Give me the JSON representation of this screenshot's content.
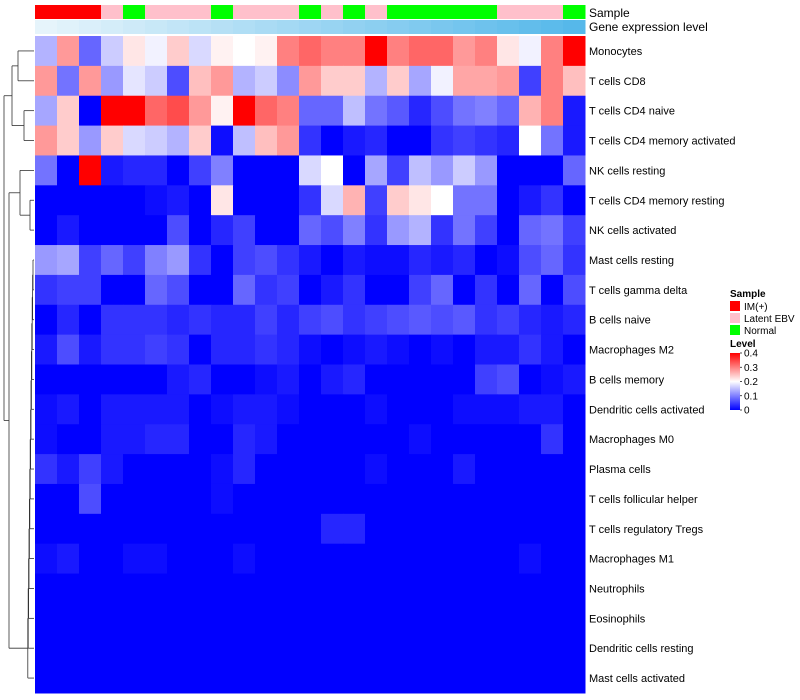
{
  "chart_data": {
    "type": "heatmap",
    "annotation_rows": [
      "Sample",
      "Gene expression level"
    ],
    "sample_groups": [
      "IM(+)",
      "IM(+)",
      "IM(+)",
      "Latent EBV",
      "Normal",
      "Latent EBV",
      "Latent EBV",
      "Latent EBV",
      "Normal",
      "Latent EBV",
      "Latent EBV",
      "Latent EBV",
      "Normal",
      "Latent EBV",
      "Normal",
      "Latent EBV",
      "Normal",
      "Normal",
      "Normal",
      "Normal",
      "Normal",
      "Latent EBV",
      "Latent EBV",
      "Latent EBV",
      "Normal"
    ],
    "expression_levels": [
      1,
      2,
      3,
      4,
      5,
      6,
      7,
      8,
      9,
      10,
      11,
      12,
      13,
      14,
      15,
      16,
      17,
      18,
      19,
      20,
      21,
      22,
      23,
      24,
      25
    ],
    "rows": [
      "Monocytes",
      "T cells CD8",
      "T cells CD4 naive",
      "T cells CD4 memory activated",
      "NK cells resting",
      "T cells CD4 memory resting",
      "NK cells activated",
      "Mast cells resting",
      "T cells gamma delta",
      "B cells naive",
      "Macrophages M2",
      "B cells memory",
      "Dendritic cells activated",
      "Macrophages M0",
      "Plasma cells",
      "T cells follicular helper",
      "T cells regulatory  Tregs",
      "Macrophages M1",
      "Neutrophils",
      "Eosinophils",
      "Dendritic cells resting",
      "Mast cells activated"
    ],
    "values": [
      [
        0.14,
        0.28,
        0.08,
        0.16,
        0.22,
        0.19,
        0.24,
        0.17,
        0.21,
        0.2,
        0.21,
        0.3,
        0.32,
        0.3,
        0.3,
        0.4,
        0.3,
        0.32,
        0.32,
        0.28,
        0.3,
        0.22,
        0.19,
        0.3,
        0.4
      ],
      [
        0.28,
        0.09,
        0.28,
        0.12,
        0.18,
        0.16,
        0.06,
        0.25,
        0.28,
        0.14,
        0.16,
        0.11,
        0.28,
        0.24,
        0.24,
        0.14,
        0.24,
        0.13,
        0.19,
        0.27,
        0.27,
        0.28,
        0.05,
        0.3,
        0.25
      ],
      [
        0.13,
        0.24,
        0.0,
        0.4,
        0.4,
        0.32,
        0.34,
        0.28,
        0.21,
        0.4,
        0.32,
        0.3,
        0.08,
        0.08,
        0.15,
        0.09,
        0.07,
        0.03,
        0.06,
        0.09,
        0.1,
        0.08,
        0.26,
        0.3,
        0.02
      ],
      [
        0.28,
        0.24,
        0.12,
        0.24,
        0.17,
        0.16,
        0.14,
        0.24,
        0.01,
        0.15,
        0.25,
        0.28,
        0.04,
        0.0,
        0.02,
        0.03,
        0.0,
        0.0,
        0.04,
        0.05,
        0.04,
        0.03,
        0.2,
        0.09,
        0.02
      ],
      [
        0.09,
        0.0,
        0.4,
        0.02,
        0.03,
        0.03,
        0.0,
        0.05,
        0.1,
        0.0,
        0.0,
        0.0,
        0.17,
        0.2,
        0.0,
        0.13,
        0.05,
        0.15,
        0.12,
        0.16,
        0.12,
        0.0,
        0.0,
        0.0,
        0.08
      ],
      [
        0.0,
        0.0,
        0.0,
        0.0,
        0.0,
        0.01,
        0.02,
        0.0,
        0.22,
        0.0,
        0.0,
        0.0,
        0.04,
        0.17,
        0.26,
        0.05,
        0.24,
        0.22,
        0.2,
        0.09,
        0.09,
        0.0,
        0.02,
        0.04,
        0.0
      ],
      [
        0.0,
        0.02,
        0.0,
        0.0,
        0.0,
        0.0,
        0.06,
        0.0,
        0.03,
        0.05,
        0.0,
        0.0,
        0.08,
        0.06,
        0.1,
        0.04,
        0.12,
        0.14,
        0.04,
        0.09,
        0.05,
        0.0,
        0.08,
        0.09,
        0.05
      ],
      [
        0.12,
        0.13,
        0.05,
        0.08,
        0.05,
        0.1,
        0.12,
        0.04,
        0.0,
        0.05,
        0.06,
        0.04,
        0.02,
        0.0,
        0.02,
        0.01,
        0.01,
        0.03,
        0.02,
        0.03,
        0.0,
        0.01,
        0.06,
        0.08,
        0.04
      ],
      [
        0.04,
        0.05,
        0.05,
        0.0,
        0.0,
        0.08,
        0.06,
        0.0,
        0.0,
        0.08,
        0.04,
        0.05,
        0.0,
        0.02,
        0.04,
        0.0,
        0.0,
        0.05,
        0.08,
        0.0,
        0.04,
        0.0,
        0.08,
        0.0,
        0.06
      ],
      [
        0.0,
        0.03,
        0.0,
        0.04,
        0.04,
        0.04,
        0.03,
        0.04,
        0.03,
        0.03,
        0.05,
        0.03,
        0.05,
        0.06,
        0.04,
        0.05,
        0.06,
        0.07,
        0.06,
        0.07,
        0.04,
        0.05,
        0.03,
        0.02,
        0.03
      ],
      [
        0.02,
        0.06,
        0.02,
        0.04,
        0.04,
        0.05,
        0.04,
        0.0,
        0.03,
        0.03,
        0.04,
        0.03,
        0.01,
        0.0,
        0.01,
        0.02,
        0.01,
        0.0,
        0.01,
        0.0,
        0.02,
        0.02,
        0.04,
        0.02,
        0.0
      ],
      [
        0.0,
        0.0,
        0.0,
        0.0,
        0.0,
        0.0,
        0.02,
        0.03,
        0.0,
        0.0,
        0.01,
        0.02,
        0.0,
        0.02,
        0.03,
        0.0,
        0.0,
        0.0,
        0.0,
        0.0,
        0.05,
        0.06,
        0.0,
        0.01,
        0.02
      ],
      [
        0.01,
        0.02,
        0.0,
        0.02,
        0.02,
        0.02,
        0.02,
        0.0,
        0.01,
        0.02,
        0.02,
        0.01,
        0.0,
        0.0,
        0.0,
        0.01,
        0.0,
        0.0,
        0.0,
        0.01,
        0.01,
        0.01,
        0.02,
        0.02,
        0.0
      ],
      [
        0.01,
        0.0,
        0.0,
        0.02,
        0.02,
        0.03,
        0.03,
        0.0,
        0.0,
        0.03,
        0.02,
        0.0,
        0.0,
        0.0,
        0.0,
        0.0,
        0.0,
        0.01,
        0.0,
        0.0,
        0.0,
        0.0,
        0.0,
        0.04,
        0.0
      ],
      [
        0.04,
        0.02,
        0.05,
        0.02,
        0.0,
        0.0,
        0.0,
        0.0,
        0.01,
        0.03,
        0.0,
        0.0,
        0.0,
        0.0,
        0.0,
        0.01,
        0.0,
        0.0,
        0.0,
        0.02,
        0.0,
        0.0,
        0.0,
        0.0,
        0.0
      ],
      [
        0.0,
        0.0,
        0.06,
        0.0,
        0.0,
        0.0,
        0.0,
        0.0,
        0.01,
        0.0,
        0.0,
        0.0,
        0.0,
        0.0,
        0.0,
        0.0,
        0.0,
        0.0,
        0.0,
        0.0,
        0.0,
        0.0,
        0.0,
        0.0,
        0.0
      ],
      [
        0.0,
        0.0,
        0.0,
        0.0,
        0.0,
        0.0,
        0.0,
        0.0,
        0.0,
        0.0,
        0.0,
        0.0,
        0.0,
        0.03,
        0.03,
        0.0,
        0.0,
        0.0,
        0.0,
        0.0,
        0.0,
        0.0,
        0.0,
        0.0,
        0.0
      ],
      [
        0.01,
        0.02,
        0.0,
        0.0,
        0.01,
        0.01,
        0.0,
        0.0,
        0.0,
        0.01,
        0.0,
        0.0,
        0.0,
        0.0,
        0.0,
        0.0,
        0.0,
        0.0,
        0.0,
        0.0,
        0.0,
        0.0,
        0.01,
        0.0,
        0.0
      ],
      [
        0,
        0,
        0,
        0,
        0,
        0,
        0,
        0,
        0,
        0,
        0,
        0,
        0,
        0,
        0,
        0,
        0,
        0,
        0,
        0,
        0,
        0,
        0,
        0,
        0
      ],
      [
        0,
        0,
        0,
        0,
        0,
        0,
        0,
        0,
        0,
        0,
        0,
        0,
        0,
        0,
        0,
        0,
        0,
        0,
        0,
        0,
        0,
        0,
        0,
        0,
        0
      ],
      [
        0,
        0,
        0,
        0,
        0,
        0,
        0,
        0,
        0,
        0,
        0,
        0,
        0,
        0,
        0,
        0,
        0,
        0,
        0,
        0,
        0,
        0,
        0,
        0,
        0
      ],
      [
        0,
        0,
        0,
        0,
        0,
        0,
        0,
        0,
        0,
        0,
        0,
        0,
        0,
        0,
        0,
        0,
        0,
        0,
        0,
        0,
        0,
        0,
        0,
        0,
        0
      ]
    ],
    "color_scale": {
      "min": 0,
      "mid": 0.2,
      "max": 0.4,
      "low": "#0000ff",
      "midcolor": "#ffffff",
      "high": "#ff0000"
    },
    "expression_colors": {
      "low": "#e6f4fb",
      "high": "#56b8ea"
    },
    "legend": {
      "position": "right",
      "sample": {
        "title": "Sample",
        "entries": [
          {
            "label": "IM(+)",
            "color": "#ff0000"
          },
          {
            "label": "Latent EBV",
            "color": "#ffc0cb"
          },
          {
            "label": "Normal",
            "color": "#00ff00"
          }
        ]
      },
      "level": {
        "title": "Level",
        "ticks": [
          "0.4",
          "0.3",
          "0.2",
          "0.1",
          "0"
        ],
        "tick_values": [
          0.4,
          0.3,
          0.2,
          0.1,
          0
        ]
      }
    },
    "row_dendrogram": true
  }
}
